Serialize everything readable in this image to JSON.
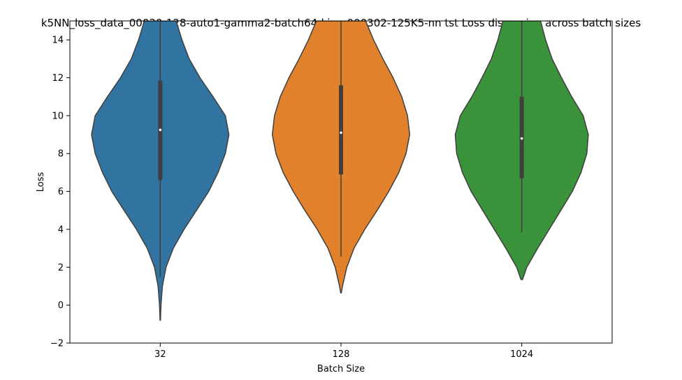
{
  "chart_data": {
    "type": "violin",
    "title": "k5NN_loss_data_00030-128-auto1-gamma2-batch64-kimg000302-125K5-nn tst Loss dispersion across batch sizes",
    "xlabel": "Batch Size",
    "ylabel": "Loss",
    "ylim": [
      -2,
      15
    ],
    "yticks": [
      -2,
      0,
      2,
      4,
      6,
      8,
      10,
      12,
      14
    ],
    "categories": [
      "32",
      "128",
      "1024"
    ],
    "grid": false,
    "legend": "none",
    "series": [
      {
        "category": "32",
        "color": "#3274a1",
        "median": 9.25,
        "q1": 6.6,
        "q3": 11.85,
        "whisker_low": 1.5,
        "whisker_high": 15,
        "density": [
          [
            -0.8,
            0.003
          ],
          [
            0,
            0.01
          ],
          [
            1,
            0.03
          ],
          [
            2,
            0.08
          ],
          [
            3,
            0.18
          ],
          [
            4,
            0.33
          ],
          [
            5,
            0.5
          ],
          [
            6,
            0.67
          ],
          [
            7,
            0.8
          ],
          [
            8,
            0.9
          ],
          [
            9,
            0.95
          ],
          [
            10,
            0.9
          ],
          [
            11,
            0.73
          ],
          [
            12,
            0.55
          ],
          [
            13,
            0.4
          ],
          [
            14,
            0.3
          ],
          [
            15,
            0.22
          ]
        ]
      },
      {
        "category": "128",
        "color": "#e1812c",
        "median": 9.1,
        "q1": 6.9,
        "q3": 11.6,
        "whisker_low": 2.55,
        "whisker_high": 15,
        "density": [
          [
            0.65,
            0.005
          ],
          [
            1,
            0.02
          ],
          [
            2,
            0.08
          ],
          [
            3,
            0.18
          ],
          [
            4,
            0.33
          ],
          [
            5,
            0.5
          ],
          [
            6,
            0.66
          ],
          [
            7,
            0.8
          ],
          [
            8,
            0.9
          ],
          [
            9,
            0.95
          ],
          [
            10,
            0.92
          ],
          [
            11,
            0.84
          ],
          [
            12,
            0.72
          ],
          [
            13,
            0.58
          ],
          [
            14,
            0.45
          ],
          [
            15,
            0.34
          ]
        ]
      },
      {
        "category": "1024",
        "color": "#3a923a",
        "median": 8.8,
        "q1": 6.7,
        "q3": 11.0,
        "whisker_low": 3.85,
        "whisker_high": 15,
        "density": [
          [
            1.35,
            0.01
          ],
          [
            2,
            0.07
          ],
          [
            3,
            0.22
          ],
          [
            4,
            0.38
          ],
          [
            5,
            0.54
          ],
          [
            6,
            0.7
          ],
          [
            7,
            0.82
          ],
          [
            8,
            0.9
          ],
          [
            9,
            0.92
          ],
          [
            10,
            0.85
          ],
          [
            11,
            0.69
          ],
          [
            12,
            0.55
          ],
          [
            13,
            0.42
          ],
          [
            14,
            0.33
          ],
          [
            15,
            0.26
          ]
        ]
      }
    ]
  }
}
